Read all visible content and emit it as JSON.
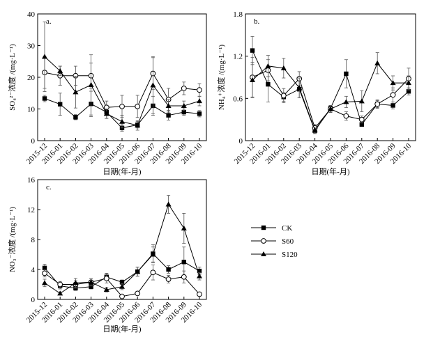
{
  "chart_data": [
    {
      "type": "line",
      "panel_label": "a.",
      "ylabel": "SO₄²⁻浓度 /(mg·L⁻¹)",
      "xlabel": "日期(年-月)",
      "ylim": [
        0,
        40
      ],
      "yticks": [
        "0",
        "10",
        "20",
        "30",
        "40"
      ],
      "categories": [
        "2015-12",
        "2016-01",
        "2016-02",
        "2016-03",
        "2016-04",
        "2016-05",
        "2016-06",
        "2016-07",
        "2016-08",
        "2016-09",
        "2016-10"
      ],
      "series": [
        {
          "name": "CK",
          "marker": "square",
          "values": [
            13.3,
            11.5,
            7.4,
            11.6,
            9.0,
            4.0,
            5.0,
            11.0,
            8.0,
            9.0,
            8.5
          ],
          "errors": [
            1.0,
            3.5,
            0.8,
            4.0,
            2.0,
            1.0,
            1.0,
            3.0,
            1.5,
            1.0,
            1.0
          ]
        },
        {
          "name": "S60",
          "marker": "circle",
          "values": [
            21.5,
            20.5,
            20.5,
            20.5,
            10.5,
            10.8,
            10.8,
            21.2,
            13.0,
            16.5,
            16.0
          ],
          "errors": [
            5.0,
            3.0,
            3.0,
            4.0,
            2.0,
            3.5,
            3.5,
            5.0,
            3.5,
            2.0,
            2.0
          ]
        },
        {
          "name": "S120",
          "marker": "triangle",
          "values": [
            26.5,
            22.0,
            15.3,
            17.6,
            8.5,
            6.0,
            4.8,
            17.5,
            11.0,
            11.0,
            12.5
          ],
          "errors": [
            11.0,
            1.5,
            5.0,
            9.5,
            1.5,
            2.0,
            1.5,
            9.0,
            2.0,
            1.5,
            1.5
          ]
        }
      ]
    },
    {
      "type": "line",
      "panel_label": "b.",
      "ylabel": "NH₄⁺浓度 /(mg·L⁻¹)",
      "xlabel": "日期(年-月)",
      "ylim": [
        0,
        1.8
      ],
      "yticks": [
        "0",
        "0.6",
        "1.2",
        "1.8"
      ],
      "categories": [
        "2015-12",
        "2016-01",
        "2016-02",
        "2016-03",
        "2016-04",
        "2016-05",
        "2016-06",
        "2016-07",
        "2016-08",
        "2016-09",
        "2016-10"
      ],
      "series": [
        {
          "name": "CK",
          "marker": "square",
          "values": [
            1.28,
            0.8,
            0.62,
            0.73,
            0.14,
            0.46,
            0.95,
            0.23,
            0.52,
            0.5,
            0.7
          ],
          "errors": [
            0.2,
            0.25,
            0.06,
            0.12,
            0.04,
            0.04,
            0.2,
            0.03,
            0.05,
            0.05,
            0.05
          ]
        },
        {
          "name": "S60",
          "marker": "circle",
          "values": [
            0.9,
            1.0,
            0.64,
            0.88,
            0.18,
            0.45,
            0.35,
            0.3,
            0.52,
            0.65,
            0.88
          ],
          "errors": [
            0.28,
            0.15,
            0.1,
            0.1,
            0.05,
            0.05,
            0.06,
            0.05,
            0.06,
            0.1,
            0.15
          ]
        },
        {
          "name": "S120",
          "marker": "triangle",
          "values": [
            0.86,
            1.06,
            1.03,
            0.75,
            0.15,
            0.45,
            0.55,
            0.56,
            1.1,
            0.82,
            0.82
          ],
          "errors": [
            0.25,
            0.15,
            0.14,
            0.14,
            0.04,
            0.05,
            0.08,
            0.15,
            0.15,
            0.1,
            0.1
          ]
        }
      ]
    },
    {
      "type": "line",
      "panel_label": "c.",
      "ylabel": "NO₃⁻浓度 /(mg·L⁻¹)",
      "xlabel": "日期(年-月)",
      "ylim": [
        0,
        16
      ],
      "yticks": [
        "0",
        "4",
        "8",
        "12",
        "16"
      ],
      "categories": [
        "2015-12",
        "2016-01",
        "2016-02",
        "2016-03",
        "2016-04",
        "2016-05",
        "2016-06",
        "2016-07",
        "2016-08",
        "2016-09",
        "2016-10"
      ],
      "series": [
        {
          "name": "CK",
          "marker": "square",
          "values": [
            4.2,
            1.8,
            1.5,
            1.7,
            3.0,
            2.3,
            3.7,
            6.1,
            4.0,
            5.0,
            3.8
          ],
          "errors": [
            0.5,
            0.4,
            0.3,
            0.3,
            0.5,
            0.3,
            0.6,
            1.2,
            0.5,
            2.0,
            0.5
          ]
        },
        {
          "name": "S60",
          "marker": "circle",
          "values": [
            3.5,
            2.0,
            2.0,
            2.3,
            2.8,
            0.4,
            0.8,
            3.6,
            2.7,
            3.0,
            0.7
          ],
          "errors": [
            0.5,
            0.4,
            0.5,
            0.5,
            0.6,
            0.1,
            0.2,
            1.0,
            0.5,
            0.8,
            0.1
          ]
        },
        {
          "name": "S120",
          "marker": "triangle",
          "values": [
            2.2,
            0.8,
            2.2,
            2.3,
            1.3,
            1.7,
            3.7,
            6.0,
            12.7,
            9.5,
            3.1
          ],
          "errors": [
            0.5,
            0.2,
            0.6,
            0.5,
            0.3,
            0.4,
            0.6,
            1.0,
            1.2,
            2.0,
            0.5
          ]
        }
      ]
    }
  ],
  "legend": [
    {
      "label": "CK",
      "marker": "square"
    },
    {
      "label": "S60",
      "marker": "circle"
    },
    {
      "label": "S120",
      "marker": "triangle"
    }
  ]
}
